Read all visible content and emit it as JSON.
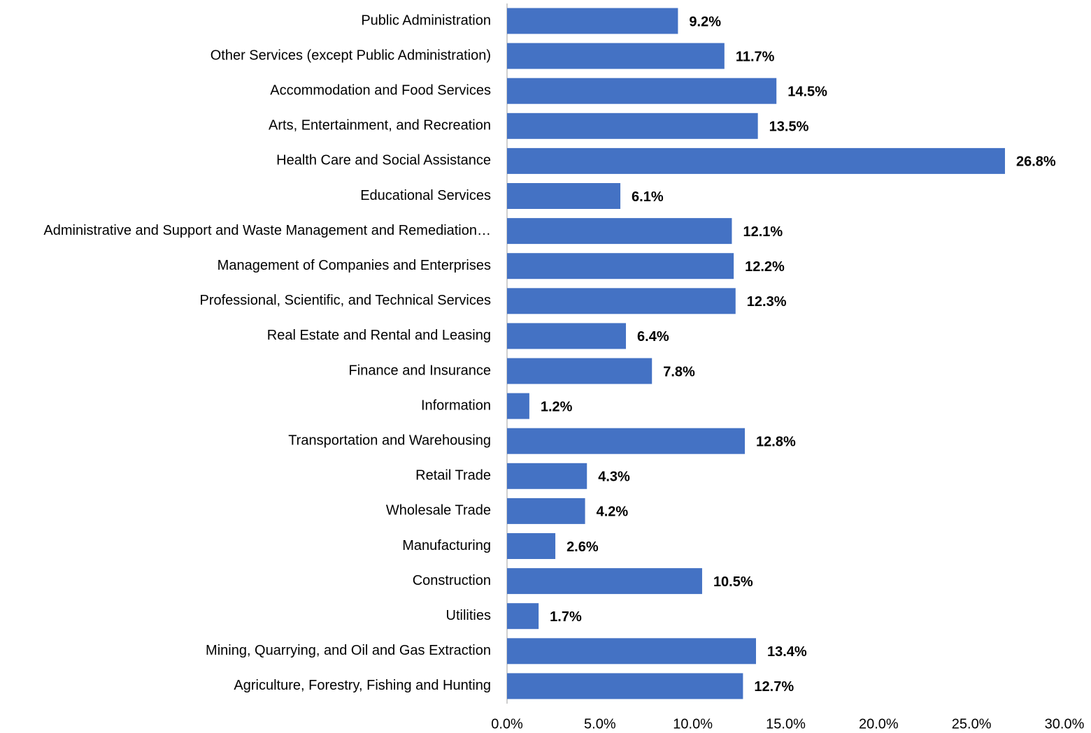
{
  "chart_data": {
    "type": "bar",
    "orientation": "horizontal",
    "color": "#4472c4",
    "categories": [
      "Public Administration",
      "Other Services (except Public Administration)",
      "Accommodation and Food Services",
      "Arts, Entertainment, and Recreation",
      "Health Care and Social Assistance",
      "Educational Services",
      "Administrative and Support and Waste Management and Remediation…",
      "Management of Companies and Enterprises",
      "Professional, Scientific, and Technical Services",
      "Real Estate and Rental and Leasing",
      "Finance and Insurance",
      "Information",
      "Transportation and Warehousing",
      "Retail Trade",
      "Wholesale Trade",
      "Manufacturing",
      "Construction",
      "Utilities",
      "Mining, Quarrying, and Oil and Gas Extraction",
      "Agriculture, Forestry, Fishing and Hunting"
    ],
    "values": [
      9.2,
      11.7,
      14.5,
      13.5,
      26.8,
      6.1,
      12.1,
      12.2,
      12.3,
      6.4,
      7.8,
      1.2,
      12.8,
      4.3,
      4.2,
      2.6,
      10.5,
      1.7,
      13.4,
      12.7
    ],
    "value_labels": [
      "9.2%",
      "11.7%",
      "14.5%",
      "13.5%",
      "26.8%",
      "6.1%",
      "12.1%",
      "12.2%",
      "12.3%",
      "6.4%",
      "7.8%",
      "1.2%",
      "12.8%",
      "4.3%",
      "4.2%",
      "2.6%",
      "10.5%",
      "1.7%",
      "13.4%",
      "12.7%"
    ],
    "xlim": [
      0,
      30
    ],
    "xticks": [
      {
        "value": 0,
        "label": "0.0%"
      },
      {
        "value": 5,
        "label": "5.0%"
      },
      {
        "value": 10,
        "label": "10.0%"
      },
      {
        "value": 15,
        "label": "15.0%"
      },
      {
        "value": 20,
        "label": "20.0%"
      },
      {
        "value": 25,
        "label": "25.0%"
      },
      {
        "value": 30,
        "label": "30.0%"
      }
    ]
  }
}
